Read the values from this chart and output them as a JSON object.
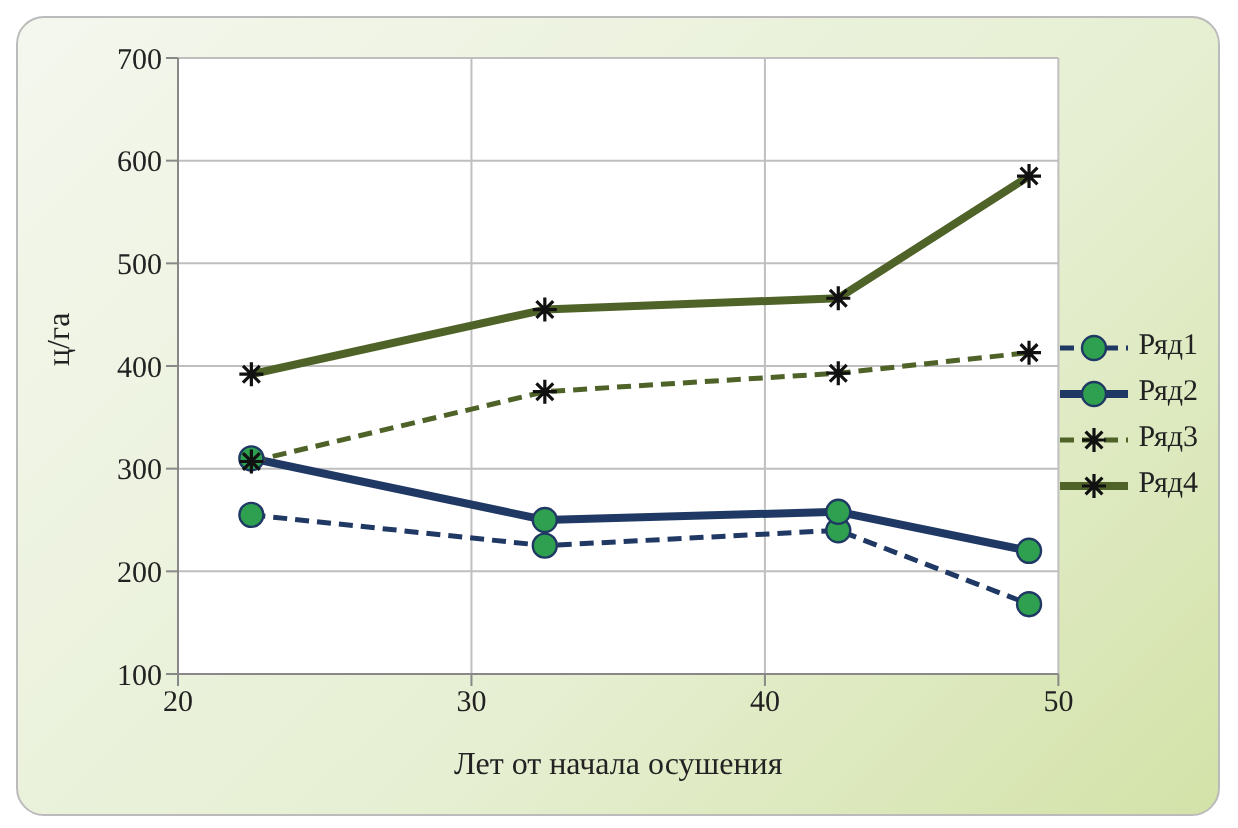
{
  "chart_data": {
    "type": "line",
    "xlabel": "Лет от начала осушения",
    "ylabel": "ц/га",
    "xlim": [
      20,
      50
    ],
    "xticks": [
      20,
      30,
      40,
      50
    ],
    "ylim": [
      100,
      700
    ],
    "yticks": [
      100,
      200,
      300,
      400,
      500,
      600,
      700
    ],
    "grid": true,
    "legend": "right",
    "x": [
      22.5,
      32.5,
      42.5,
      49
    ],
    "series": [
      {
        "name": "Ряд1",
        "color": "#1f3864",
        "marker": "circle",
        "line_style": "dashed",
        "values": [
          255,
          225,
          240,
          168
        ]
      },
      {
        "name": "Ряд2",
        "color": "#1f3864",
        "marker": "circle",
        "line_style": "solid",
        "values": [
          310,
          250,
          258,
          220
        ]
      },
      {
        "name": "Ряд3",
        "color": "#4f6228",
        "marker": "cross",
        "line_style": "dashed",
        "values": [
          307,
          375,
          393,
          413
        ]
      },
      {
        "name": "Ряд4",
        "color": "#4f6228",
        "marker": "cross",
        "line_style": "solid",
        "values": [
          392,
          455,
          466,
          585
        ]
      }
    ]
  }
}
